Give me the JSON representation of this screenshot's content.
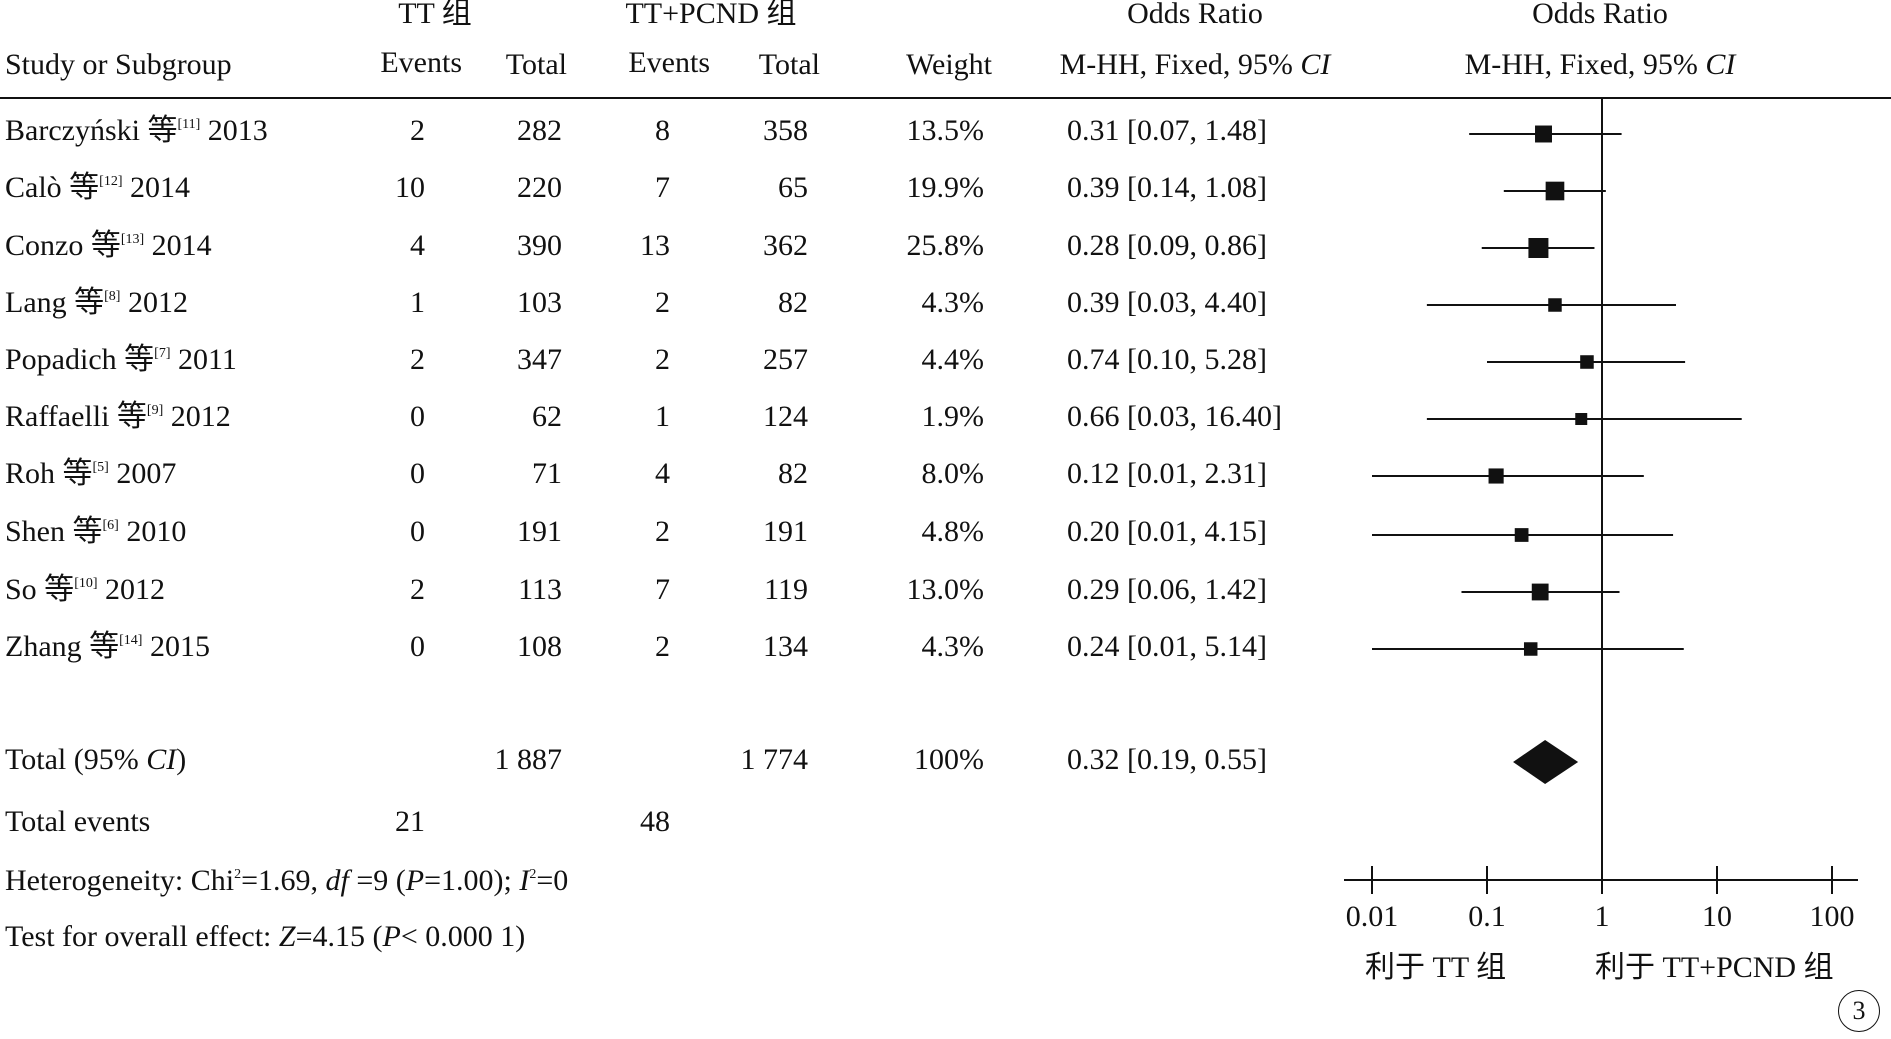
{
  "header": {
    "group1": "TT 组",
    "group2": "TT+PCND 组",
    "or_title": "Odds Ratio",
    "or_method": "M-HH, Fixed, 95% ",
    "ci": "CI",
    "plot_title": "Odds Ratio",
    "plot_method": "M-HH, Fixed, 95% ",
    "plot_ci": "CI",
    "study": "Study or Subgroup",
    "events1": "Events",
    "total1": "Total",
    "events2": "Events",
    "total2": "Total",
    "weight": "Weight"
  },
  "studies": [
    {
      "name": "Barczyński 等",
      "ref": "[11]",
      "year": "2013",
      "e1": "2",
      "t1": "282",
      "e2": "8",
      "t2": "358",
      "weight": "13.5%",
      "or_text": "0.31 [0.07, 1.48]"
    },
    {
      "name": "Calò 等",
      "ref": "[12]",
      "year": "2014",
      "e1": "10",
      "t1": "220",
      "e2": "7",
      "t2": "65",
      "weight": "19.9%",
      "or_text": "0.39 [0.14, 1.08]"
    },
    {
      "name": "Conzo 等",
      "ref": "[13]",
      "year": "2014",
      "e1": "4",
      "t1": "390",
      "e2": "13",
      "t2": "362",
      "weight": "25.8%",
      "or_text": "0.28 [0.09, 0.86]"
    },
    {
      "name": "Lang 等",
      "ref": "[8]",
      "year": "2012",
      "e1": "1",
      "t1": "103",
      "e2": "2",
      "t2": "82",
      "weight": "4.3%",
      "or_text": "0.39 [0.03, 4.40]"
    },
    {
      "name": "Popadich 等",
      "ref": "[7]",
      "year": "2011",
      "e1": "2",
      "t1": "347",
      "e2": "2",
      "t2": "257",
      "weight": "4.4%",
      "or_text": "0.74 [0.10, 5.28]"
    },
    {
      "name": "Raffaelli 等",
      "ref": "[9]",
      "year": "2012",
      "e1": "0",
      "t1": "62",
      "e2": "1",
      "t2": "124",
      "weight": "1.9%",
      "or_text": "0.66 [0.03, 16.40]"
    },
    {
      "name": "Roh 等",
      "ref": "[5]",
      "year": "2007",
      "e1": "0",
      "t1": "71",
      "e2": "4",
      "t2": "82",
      "weight": "8.0%",
      "or_text": "0.12 [0.01, 2.31]"
    },
    {
      "name": "Shen 等",
      "ref": "[6]",
      "year": "2010",
      "e1": "0",
      "t1": "191",
      "e2": "2",
      "t2": "191",
      "weight": "4.8%",
      "or_text": "0.20 [0.01, 4.15]"
    },
    {
      "name": "So 等",
      "ref": "[10]",
      "year": "2012",
      "e1": "2",
      "t1": "113",
      "e2": "7",
      "t2": "119",
      "weight": "13.0%",
      "or_text": "0.29 [0.06, 1.42]"
    },
    {
      "name": "Zhang 等",
      "ref": "[14]",
      "year": "2015",
      "e1": "0",
      "t1": "108",
      "e2": "2",
      "t2": "134",
      "weight": "4.3%",
      "or_text": "0.24 [0.01, 5.14]"
    }
  ],
  "total": {
    "label_pre": "Total (95% ",
    "label_ci": "CI",
    "label_post": ")",
    "t1": "1 887",
    "t2": "1 774",
    "weight": "100%",
    "or_text": "0.32 [0.19, 0.55]"
  },
  "total_events": {
    "label": "Total events",
    "e1": "21",
    "e2": "48"
  },
  "heterogeneity": {
    "p1": "Heterogeneity: Chi",
    "sup1": "2",
    "p2": "=1.69, ",
    "df": "df",
    "p3": " =9 (",
    "P": "P",
    "p4": "=1.00); ",
    "I": "I",
    "sup2": "2",
    "p5": "=0"
  },
  "overall": {
    "p1": "Test for overall effect: ",
    "Z": "Z",
    "p2": "=4.15 (",
    "P": "P",
    "p3": "< 0.000 1)"
  },
  "axis": {
    "favors_left": "利于 TT 组",
    "favors_right": "利于 TT+PCND 组"
  },
  "figure_number": "3",
  "chart_data": {
    "type": "forest",
    "x_scale": "log",
    "xlim": [
      0.01,
      100
    ],
    "ticks": [
      0.01,
      0.1,
      1,
      10,
      100
    ],
    "tick_labels": [
      "0.01",
      "0.1",
      "1",
      "10",
      "100"
    ],
    "null_line": 1,
    "points": [
      {
        "or": 0.31,
        "lo": 0.07,
        "hi": 1.48,
        "weight": 13.5
      },
      {
        "or": 0.39,
        "lo": 0.14,
        "hi": 1.08,
        "weight": 19.9
      },
      {
        "or": 0.28,
        "lo": 0.09,
        "hi": 0.86,
        "weight": 25.8
      },
      {
        "or": 0.39,
        "lo": 0.03,
        "hi": 4.4,
        "weight": 4.3
      },
      {
        "or": 0.74,
        "lo": 0.1,
        "hi": 5.28,
        "weight": 4.4
      },
      {
        "or": 0.66,
        "lo": 0.03,
        "hi": 16.4,
        "weight": 1.9
      },
      {
        "or": 0.12,
        "lo": 0.01,
        "hi": 2.31,
        "weight": 8.0
      },
      {
        "or": 0.2,
        "lo": 0.01,
        "hi": 4.15,
        "weight": 4.8
      },
      {
        "or": 0.29,
        "lo": 0.06,
        "hi": 1.42,
        "weight": 13.0
      },
      {
        "or": 0.24,
        "lo": 0.01,
        "hi": 5.14,
        "weight": 4.3
      }
    ],
    "summary": {
      "or": 0.32,
      "lo": 0.19,
      "hi": 0.55
    }
  }
}
